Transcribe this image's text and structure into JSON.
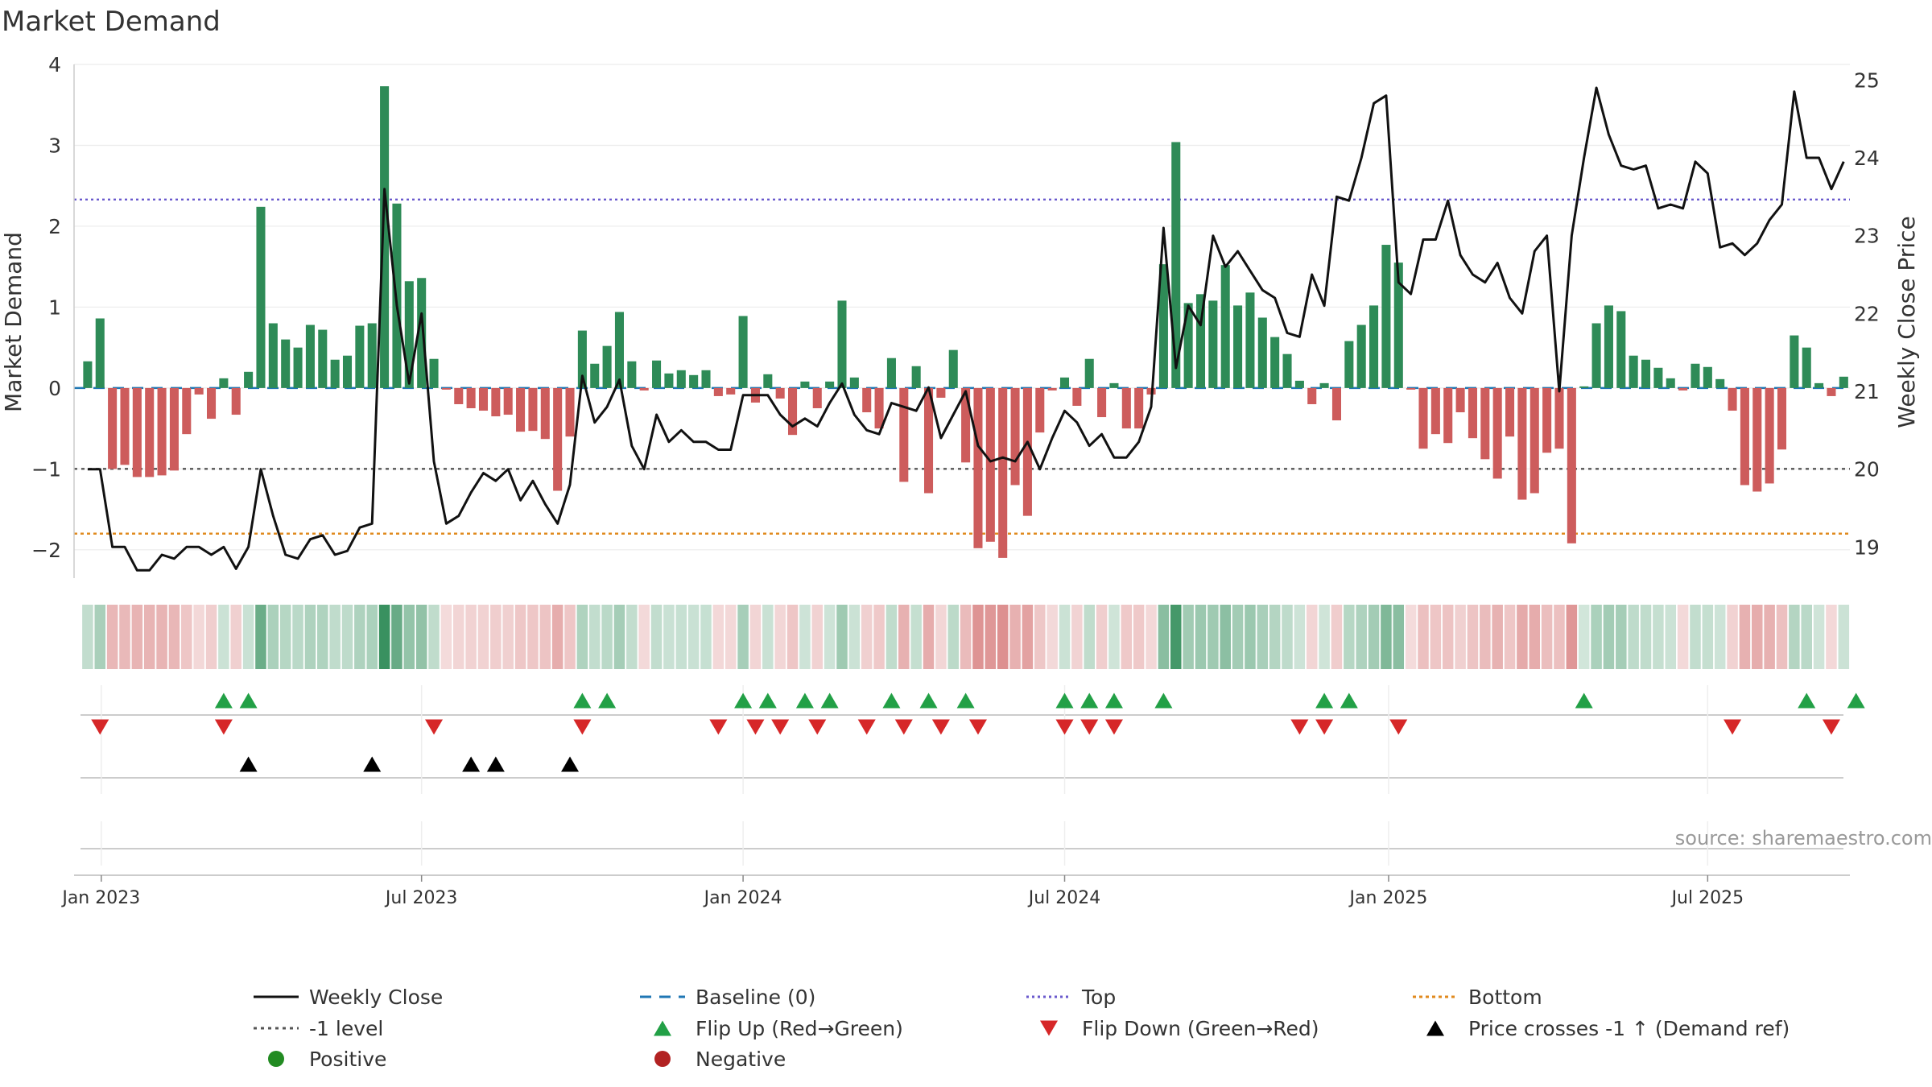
{
  "colors": {
    "positive_bar": "#2e8b57",
    "negative_bar": "#cd5c5c",
    "close_line": "#111111",
    "baseline": "#1f77b4",
    "top_line": "#6a5acd",
    "bottom_line": "#e08a1e",
    "level_line": "#555555",
    "flip_up": "#22a046",
    "flip_down": "#d62728",
    "cross": "#000000",
    "positive_dot": "#228b22",
    "negative_dot": "#b22222"
  },
  "chart_data": {
    "type": "bar",
    "title": "Market Demand",
    "ylabel_left": "Market Demand",
    "ylabel_right": "Weekly Close Price",
    "source": "source: sharemaestro.com",
    "ylim_left": [
      -2.35,
      4
    ],
    "ylim_right": [
      18.6,
      25.2
    ],
    "yticks_left": [
      4,
      3,
      2,
      1,
      0,
      -1,
      -2
    ],
    "ytick_labels_left": [
      "4",
      "3",
      "2",
      "1",
      "0",
      "−1",
      "−2"
    ],
    "yticks_right": [
      25,
      24,
      23,
      22,
      21,
      20,
      19
    ],
    "xlim_index": [
      -1.1,
      142.5
    ],
    "x_ticks": [
      {
        "label": "Jan 2023",
        "index": 1.1
      },
      {
        "label": "Jul 2023",
        "index": 27.0
      },
      {
        "label": "Jan 2024",
        "index": 53.0
      },
      {
        "label": "Jul 2024",
        "index": 79.0
      },
      {
        "label": "Jan 2025",
        "index": 105.2
      },
      {
        "label": "Jul 2025",
        "index": 131.0
      }
    ],
    "reference_lines": {
      "top": 2.33,
      "level_minus1": -1.0,
      "bottom": -1.8,
      "baseline": 0
    },
    "demand": [
      0.33,
      0.86,
      -1.0,
      -0.95,
      -1.1,
      -1.1,
      -1.08,
      -1.02,
      -0.57,
      -0.08,
      -0.38,
      0.12,
      -0.33,
      0.2,
      2.24,
      0.8,
      0.6,
      0.5,
      0.78,
      0.72,
      0.35,
      0.4,
      0.77,
      0.8,
      3.73,
      2.28,
      1.32,
      1.36,
      0.36,
      -0.02,
      -0.2,
      -0.25,
      -0.28,
      -0.35,
      -0.33,
      -0.54,
      -0.53,
      -0.63,
      -1.27,
      -0.6,
      0.71,
      0.3,
      0.52,
      0.94,
      0.33,
      -0.03,
      0.34,
      0.18,
      0.22,
      0.16,
      0.22,
      -0.1,
      -0.08,
      0.89,
      -0.18,
      0.17,
      -0.13,
      -0.58,
      0.08,
      -0.25,
      0.08,
      1.08,
      0.13,
      -0.3,
      -0.5,
      0.37,
      -1.16,
      0.27,
      -1.3,
      -0.12,
      0.47,
      -0.92,
      -1.98,
      -1.9,
      -2.1,
      -1.2,
      -1.58,
      -0.55,
      -0.03,
      0.13,
      -0.22,
      0.36,
      -0.36,
      0.06,
      -0.5,
      -0.5,
      -0.08,
      1.53,
      3.04,
      1.05,
      1.16,
      1.08,
      1.52,
      1.02,
      1.18,
      0.87,
      0.63,
      0.42,
      0.09,
      -0.2,
      0.06,
      -0.4,
      0.58,
      0.78,
      1.02,
      1.77,
      1.55,
      -0.02,
      -0.75,
      -0.57,
      -0.68,
      -0.3,
      -0.62,
      -0.88,
      -1.12,
      -0.6,
      -1.38,
      -1.3,
      -0.8,
      -0.75,
      -1.92,
      0.02,
      0.8,
      1.02,
      0.95,
      0.4,
      0.35,
      0.25,
      0.12,
      -0.03,
      0.3,
      0.26,
      0.11,
      -0.28,
      -1.2,
      -1.28,
      -1.18,
      -0.76,
      0.65,
      0.5,
      0.06,
      -0.1,
      0.14
    ],
    "weekly_close": [
      20.0,
      20.0,
      19.0,
      19.0,
      18.7,
      18.7,
      18.9,
      18.85,
      19.0,
      19.0,
      18.9,
      19.0,
      18.72,
      19.0,
      20.0,
      19.4,
      18.9,
      18.85,
      19.1,
      19.15,
      18.9,
      18.95,
      19.25,
      19.3,
      23.6,
      22.1,
      21.1,
      22.0,
      20.1,
      19.3,
      19.4,
      19.7,
      19.95,
      19.85,
      20.0,
      19.6,
      19.85,
      19.55,
      19.3,
      19.8,
      21.2,
      20.6,
      20.8,
      21.15,
      20.3,
      20.0,
      20.7,
      20.35,
      20.5,
      20.35,
      20.35,
      20.25,
      20.25,
      20.95,
      20.95,
      20.95,
      20.7,
      20.55,
      20.65,
      20.55,
      20.85,
      21.1,
      20.7,
      20.5,
      20.45,
      20.85,
      20.8,
      20.75,
      21.05,
      20.4,
      20.7,
      21.0,
      20.3,
      20.1,
      20.15,
      20.1,
      20.35,
      20.0,
      20.4,
      20.75,
      20.6,
      20.3,
      20.45,
      20.15,
      20.15,
      20.35,
      20.8,
      23.1,
      21.3,
      22.1,
      21.85,
      23.0,
      22.6,
      22.8,
      22.55,
      22.3,
      22.2,
      21.75,
      21.7,
      22.5,
      22.1,
      23.5,
      23.45,
      24.0,
      24.7,
      24.8,
      22.4,
      22.25,
      22.95,
      22.95,
      23.45,
      22.75,
      22.5,
      22.4,
      22.65,
      22.2,
      22.0,
      22.8,
      23.0,
      21.0,
      23.0,
      24.0,
      24.9,
      24.3,
      23.9,
      23.85,
      23.9,
      23.35,
      23.4,
      23.35,
      23.95,
      23.8,
      22.85,
      22.9,
      22.75,
      22.9,
      23.2,
      23.4,
      24.85,
      24.0,
      24.0,
      23.6,
      23.95
    ],
    "flip_up": [
      11,
      13,
      40,
      42,
      53,
      55,
      58,
      60,
      65,
      68,
      71,
      79,
      81,
      83,
      87,
      100,
      102,
      121,
      139,
      143
    ],
    "flip_down": [
      1,
      11,
      28,
      40,
      51,
      54,
      56,
      59,
      63,
      66,
      69,
      72,
      79,
      81,
      83,
      98,
      100,
      106,
      133,
      141
    ],
    "cross_up": [
      13,
      23,
      31,
      33,
      39
    ],
    "legend": [
      {
        "label": "Weekly Close",
        "marker": "line"
      },
      {
        "label": "Baseline (0)",
        "marker": "dash"
      },
      {
        "label": "Top",
        "marker": "dots-top"
      },
      {
        "label": "Bottom",
        "marker": "dots-bottom"
      },
      {
        "label": "-1 level",
        "marker": "dots-level"
      },
      {
        "label": "Flip Up (Red→Green)",
        "marker": "tri-up"
      },
      {
        "label": "Flip Down (Green→Red)",
        "marker": "tri-down"
      },
      {
        "label": "Price crosses -1 ↑ (Demand ref)",
        "marker": "tri-black"
      },
      {
        "label": "Positive",
        "marker": "dot-pos"
      },
      {
        "label": "Negative",
        "marker": "dot-neg"
      }
    ]
  }
}
